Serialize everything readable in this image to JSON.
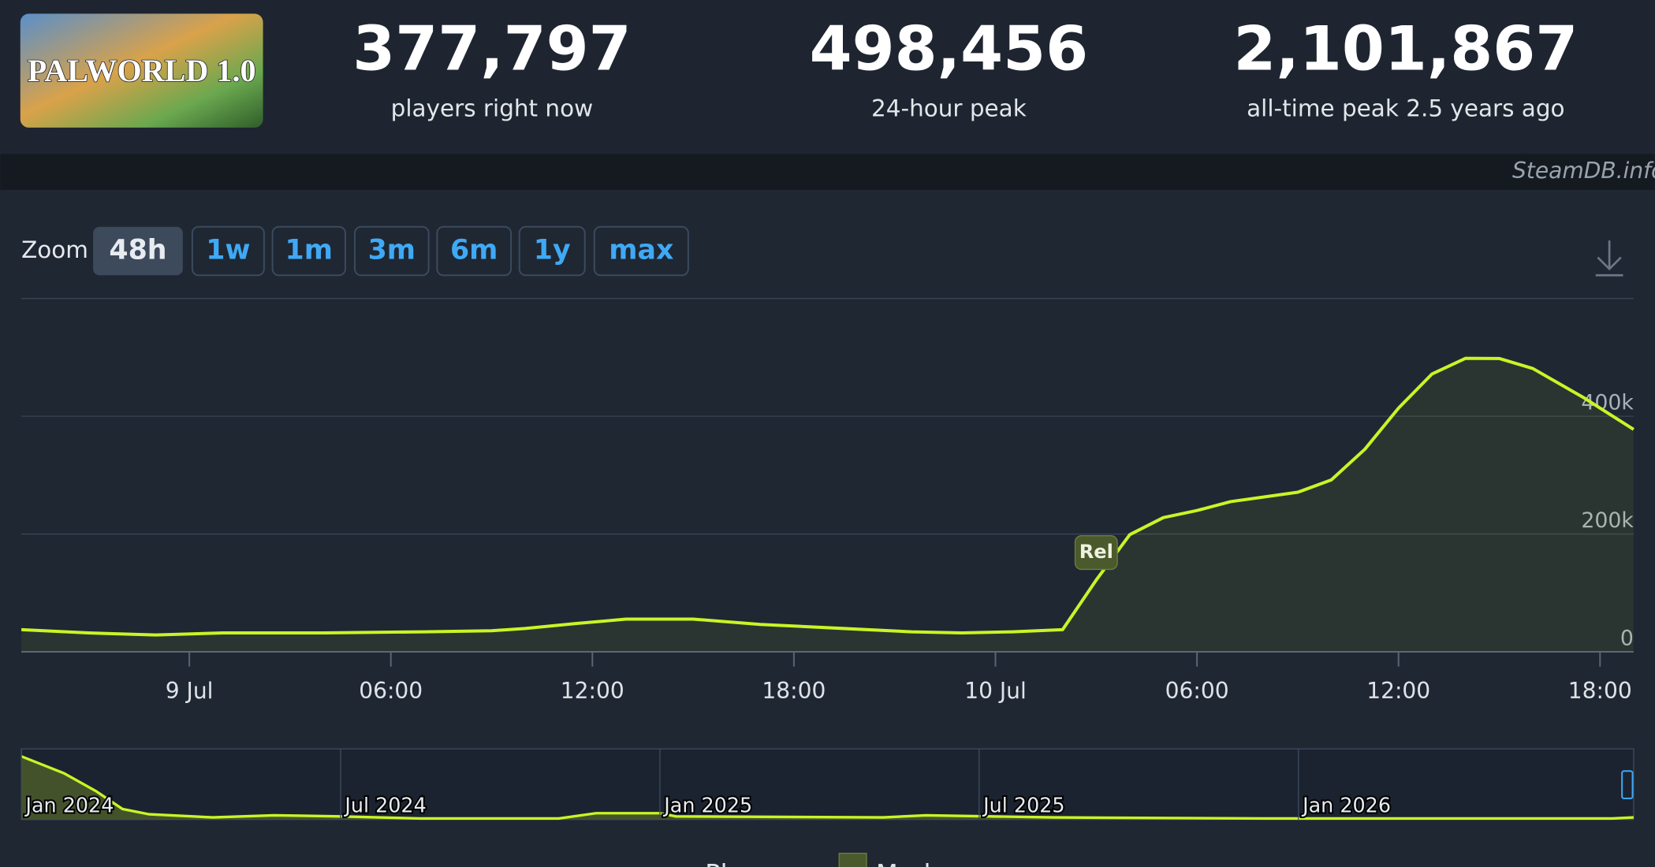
{
  "header": {
    "game_logo": "PALWORLD 1.0",
    "stats": [
      {
        "value": "377,797",
        "label": "players right now"
      },
      {
        "value": "498,456",
        "label": "24-hour peak"
      },
      {
        "value": "2,101,867",
        "label": "all-time peak 2.5 years ago"
      }
    ],
    "watermark": "SteamDB.info"
  },
  "zoom": {
    "label": "Zoom",
    "options": [
      "48h",
      "1w",
      "1m",
      "3m",
      "6m",
      "1y",
      "max"
    ],
    "active": 0
  },
  "chart_data": {
    "type": "line",
    "x": [
      -5,
      -3,
      -1,
      1,
      4,
      7,
      9,
      10,
      11.5,
      13,
      15,
      17,
      19.5,
      21.5,
      23,
      24.5,
      26,
      27,
      28,
      29,
      30,
      31,
      33,
      34,
      35,
      36,
      37,
      38,
      39,
      40,
      41.5,
      43
    ],
    "series": [
      {
        "name": "Players",
        "color": "#c8f526",
        "values": [
          37700,
          32000,
          28700,
          32000,
          32000,
          34000,
          35900,
          39500,
          48000,
          55600,
          55600,
          46600,
          39500,
          34000,
          32000,
          34000,
          37700,
          122000,
          199000,
          228000,
          240000,
          255000,
          271000,
          292000,
          344000,
          414000,
          472000,
          498456,
          498000,
          481000,
          432000,
          377797
        ]
      }
    ],
    "xlim": [
      -5,
      43
    ],
    "xticks": [
      {
        "value": 0,
        "label": "9 Jul"
      },
      {
        "value": 6,
        "label": "06:00"
      },
      {
        "value": 12,
        "label": "12:00"
      },
      {
        "value": 18,
        "label": "18:00"
      },
      {
        "value": 24,
        "label": "10 Jul"
      },
      {
        "value": 30,
        "label": "06:00"
      },
      {
        "value": 36,
        "label": "12:00"
      },
      {
        "value": 42,
        "label": "18:00"
      }
    ],
    "ylim": [
      0,
      600000
    ],
    "yticks": [
      0,
      {
        "value": 200000,
        "label": "200k"
      },
      {
        "value": 400000,
        "label": "400k"
      }
    ],
    "grid": true,
    "annotations": [
      {
        "x": 27,
        "text": "Rel"
      }
    ],
    "marker_legend": {
      "name": "Markers",
      "color": "#4b5a2c"
    }
  },
  "navigator": {
    "type": "area",
    "x": [
      0,
      0.8,
      1.4,
      1.9,
      2.4,
      3.6,
      4.75,
      6,
      7.5,
      10.1,
      10.8,
      12,
      12.3,
      16.2,
      17,
      19.4,
      23.4,
      29.9,
      30.3
    ],
    "values": [
      1968000,
      1443000,
      886000,
      328000,
      164000,
      66000,
      131000,
      98000,
      33000,
      33000,
      197000,
      197000,
      98000,
      66000,
      131000,
      66000,
      33000,
      33000,
      66000
    ],
    "color": "#c8f526",
    "xlim": [
      0,
      30.3
    ],
    "xticks": [
      {
        "value": 0,
        "label": "Jan 2024"
      },
      {
        "value": 6,
        "label": "Jul 2024"
      },
      {
        "value": 12,
        "label": "Jan 2025"
      },
      {
        "value": 18,
        "label": "Jul 2025"
      },
      {
        "value": 24,
        "label": "Jan 2026"
      }
    ],
    "ylim": [
      0,
      2200000
    ]
  }
}
